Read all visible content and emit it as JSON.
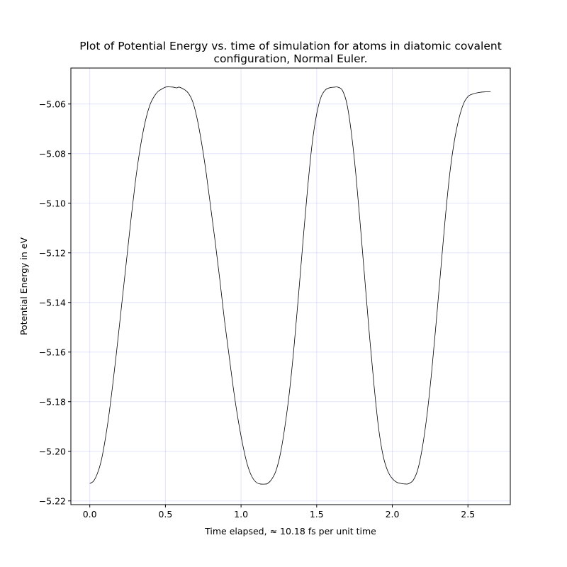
{
  "chart_data": {
    "type": "line",
    "title": "Plot of Potential Energy vs. time of simulation for atoms in diatomic covalent configuration, Normal Euler.",
    "title_lines": [
      "Plot of Potential Energy vs. time of simulation for atoms in diatomic covalent",
      "configuration, Normal Euler."
    ],
    "xlabel": "Time elapsed, ≈ 10.18 fs per unit time",
    "ylabel": "Potential Energy in eV",
    "xlim": [
      -0.125,
      2.78
    ],
    "ylim": [
      -5.2215,
      -5.0455
    ],
    "x_ticks": [
      0.0,
      0.5,
      1.0,
      1.5,
      2.0,
      2.5
    ],
    "x_tick_labels": [
      "0.0",
      "0.5",
      "1.0",
      "1.5",
      "2.0",
      "2.5"
    ],
    "y_ticks": [
      -5.22,
      -5.2,
      -5.18,
      -5.16,
      -5.14,
      -5.12,
      -5.1,
      -5.08,
      -5.06
    ],
    "y_tick_labels": [
      "−5.22",
      "−5.20",
      "−5.18",
      "−5.16",
      "−5.14",
      "−5.12",
      "−5.10",
      "−5.08",
      "−5.06"
    ],
    "grid": true,
    "series": [
      {
        "color": "#000000",
        "points": [
          [
            0.0,
            -5.213
          ],
          [
            0.025,
            -5.212
          ],
          [
            0.05,
            -5.209
          ],
          [
            0.075,
            -5.204
          ],
          [
            0.1,
            -5.196
          ],
          [
            0.125,
            -5.186
          ],
          [
            0.15,
            -5.174
          ],
          [
            0.175,
            -5.161
          ],
          [
            0.2,
            -5.147
          ],
          [
            0.225,
            -5.133
          ],
          [
            0.25,
            -5.119
          ],
          [
            0.275,
            -5.105
          ],
          [
            0.3,
            -5.092
          ],
          [
            0.325,
            -5.081
          ],
          [
            0.35,
            -5.072
          ],
          [
            0.375,
            -5.065
          ],
          [
            0.4,
            -5.06
          ],
          [
            0.425,
            -5.057
          ],
          [
            0.45,
            -5.055
          ],
          [
            0.475,
            -5.054
          ],
          [
            0.5,
            -5.0532
          ],
          [
            0.525,
            -5.0531
          ],
          [
            0.55,
            -5.0532
          ],
          [
            0.575,
            -5.0535
          ],
          [
            0.59,
            -5.0532
          ],
          [
            0.62,
            -5.054
          ],
          [
            0.65,
            -5.0555
          ],
          [
            0.68,
            -5.059
          ],
          [
            0.71,
            -5.066
          ],
          [
            0.74,
            -5.076
          ],
          [
            0.77,
            -5.088
          ],
          [
            0.8,
            -5.102
          ],
          [
            0.83,
            -5.116
          ],
          [
            0.86,
            -5.131
          ],
          [
            0.89,
            -5.147
          ],
          [
            0.92,
            -5.161
          ],
          [
            0.95,
            -5.175
          ],
          [
            0.98,
            -5.187
          ],
          [
            1.01,
            -5.197
          ],
          [
            1.04,
            -5.205
          ],
          [
            1.07,
            -5.21
          ],
          [
            1.1,
            -5.2125
          ],
          [
            1.13,
            -5.2132
          ],
          [
            1.16,
            -5.2132
          ],
          [
            1.175,
            -5.213
          ],
          [
            1.2,
            -5.2115
          ],
          [
            1.23,
            -5.208
          ],
          [
            1.26,
            -5.201
          ],
          [
            1.29,
            -5.19
          ],
          [
            1.32,
            -5.176
          ],
          [
            1.35,
            -5.158
          ],
          [
            1.38,
            -5.137
          ],
          [
            1.41,
            -5.115
          ],
          [
            1.44,
            -5.094
          ],
          [
            1.47,
            -5.076
          ],
          [
            1.5,
            -5.064
          ],
          [
            1.53,
            -5.057
          ],
          [
            1.56,
            -5.0542
          ],
          [
            1.59,
            -5.0534
          ],
          [
            1.62,
            -5.0532
          ],
          [
            1.64,
            -5.0532
          ],
          [
            1.67,
            -5.0545
          ],
          [
            1.7,
            -5.06
          ],
          [
            1.73,
            -5.072
          ],
          [
            1.76,
            -5.089
          ],
          [
            1.79,
            -5.11
          ],
          [
            1.82,
            -5.132
          ],
          [
            1.85,
            -5.154
          ],
          [
            1.88,
            -5.174
          ],
          [
            1.91,
            -5.191
          ],
          [
            1.94,
            -5.202
          ],
          [
            1.97,
            -5.208
          ],
          [
            2.0,
            -5.211
          ],
          [
            2.03,
            -5.2125
          ],
          [
            2.06,
            -5.213
          ],
          [
            2.09,
            -5.2132
          ],
          [
            2.11,
            -5.213
          ],
          [
            2.14,
            -5.2115
          ],
          [
            2.17,
            -5.207
          ],
          [
            2.2,
            -5.198
          ],
          [
            2.23,
            -5.185
          ],
          [
            2.26,
            -5.168
          ],
          [
            2.29,
            -5.148
          ],
          [
            2.32,
            -5.127
          ],
          [
            2.35,
            -5.106
          ],
          [
            2.38,
            -5.088
          ],
          [
            2.41,
            -5.075
          ],
          [
            2.44,
            -5.066
          ],
          [
            2.47,
            -5.06
          ],
          [
            2.5,
            -5.057
          ],
          [
            2.53,
            -5.056
          ],
          [
            2.56,
            -5.0555
          ],
          [
            2.59,
            -5.0552
          ],
          [
            2.62,
            -5.0551
          ],
          [
            2.65,
            -5.055
          ]
        ]
      }
    ]
  }
}
